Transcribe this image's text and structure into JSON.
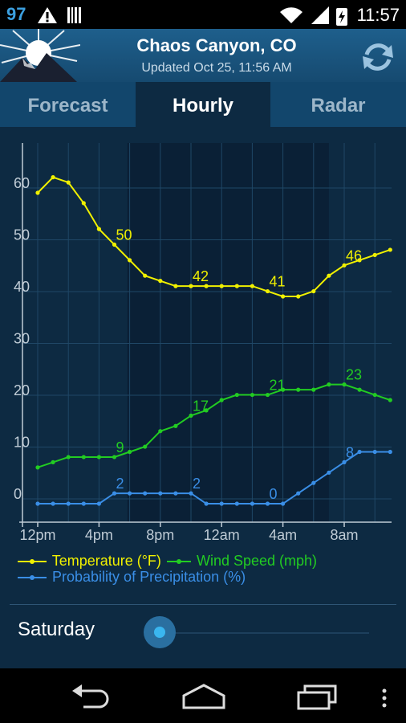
{
  "status_bar": {
    "temperature": "97",
    "time": "11:57"
  },
  "header": {
    "location": "Chaos Canyon, CO",
    "updated": "Updated Oct 25, 11:56 AM"
  },
  "tabs": [
    {
      "label": "Forecast",
      "active": false
    },
    {
      "label": "Hourly",
      "active": true
    },
    {
      "label": "Radar",
      "active": false
    }
  ],
  "chart_data": {
    "type": "line",
    "x": [
      "12pm",
      "1pm",
      "2pm",
      "3pm",
      "4pm",
      "5pm",
      "6pm",
      "7pm",
      "8pm",
      "9pm",
      "10pm",
      "11pm",
      "12am",
      "1am",
      "2am",
      "3am",
      "4am",
      "5am",
      "6am",
      "7am",
      "8am",
      "9am",
      "10am",
      "11am"
    ],
    "x_tick_labels": [
      "12pm",
      "4pm",
      "8pm",
      "12am",
      "4am",
      "8am"
    ],
    "y_tick_labels": [
      "0",
      "10",
      "20",
      "30",
      "40",
      "50",
      "60"
    ],
    "ylim": [
      -2,
      66
    ],
    "night_shading_range": [
      "6pm",
      "7am"
    ],
    "grid": true,
    "series": [
      {
        "name": "Temperature (°F)",
        "color": "#f0f000",
        "values": [
          60,
          63,
          62,
          58,
          53,
          50,
          47,
          44,
          43,
          42,
          42,
          42,
          42,
          42,
          42,
          41,
          40,
          40,
          41,
          44,
          46,
          47,
          48,
          49
        ],
        "labels": [
          {
            "index": 5,
            "text": "50"
          },
          {
            "index": 10,
            "text": "42"
          },
          {
            "index": 15,
            "text": "41"
          },
          {
            "index": 20,
            "text": "46"
          }
        ]
      },
      {
        "name": "Wind Speed (mph)",
        "color": "#22cc22",
        "values": [
          7,
          8,
          9,
          9,
          9,
          9,
          10,
          11,
          14,
          15,
          17,
          18,
          20,
          21,
          21,
          21,
          22,
          22,
          22,
          23,
          23,
          22,
          21,
          20
        ],
        "labels": [
          {
            "index": 5,
            "text": "9"
          },
          {
            "index": 10,
            "text": "17"
          },
          {
            "index": 15,
            "text": "21"
          },
          {
            "index": 20,
            "text": "23"
          }
        ]
      },
      {
        "name": "Probability of Precipitation (%)",
        "color": "#3a8ee6",
        "values": [
          0,
          0,
          0,
          0,
          0,
          2,
          2,
          2,
          2,
          2,
          2,
          0,
          0,
          0,
          0,
          0,
          0,
          2,
          4,
          6,
          8,
          10,
          10,
          10
        ],
        "labels": [
          {
            "index": 5,
            "text": "2"
          },
          {
            "index": 10,
            "text": "2"
          },
          {
            "index": 15,
            "text": "0"
          },
          {
            "index": 20,
            "text": "8"
          }
        ]
      }
    ]
  },
  "day_selector": {
    "label": "Saturday"
  }
}
